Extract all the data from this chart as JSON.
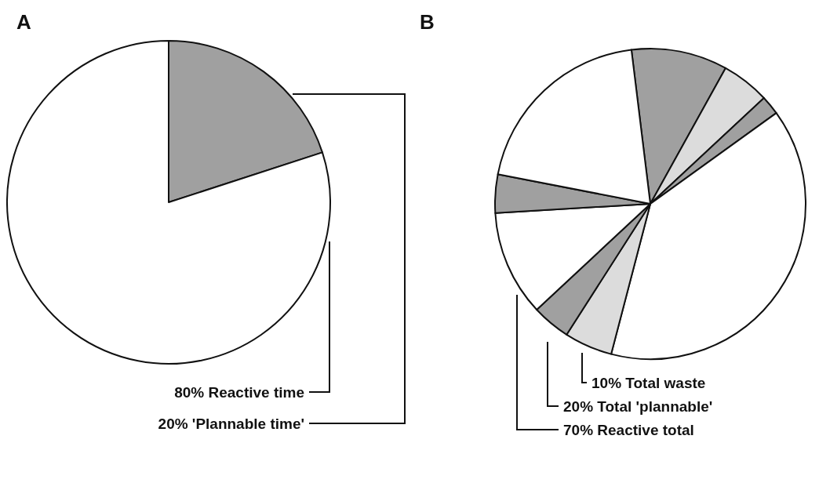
{
  "chart_data": [
    {
      "type": "pie",
      "title": "A",
      "categories": [
        null,
        null
      ],
      "values": [
        20,
        80
      ],
      "colors": [
        "#a0a0a0",
        "#ffffff"
      ],
      "annotations": [
        "80% Reactive time",
        "20% 'Plannable time'"
      ]
    },
    {
      "type": "pie",
      "title": "B",
      "categories": [
        null,
        null,
        null,
        null,
        null,
        null,
        null,
        null,
        null
      ],
      "values": [
        10,
        5,
        2,
        39,
        5,
        4,
        11,
        4,
        20
      ],
      "colors": [
        "#a0a0a0",
        "#dcdcdc",
        "#a0a0a0",
        "#ffffff",
        "#dcdcdc",
        "#a0a0a0",
        "#ffffff",
        "#a0a0a0",
        "#ffffff"
      ],
      "annotations": [
        "10% Total waste",
        "20% Total 'plannable'",
        "70% Reactive total"
      ]
    }
  ]
}
